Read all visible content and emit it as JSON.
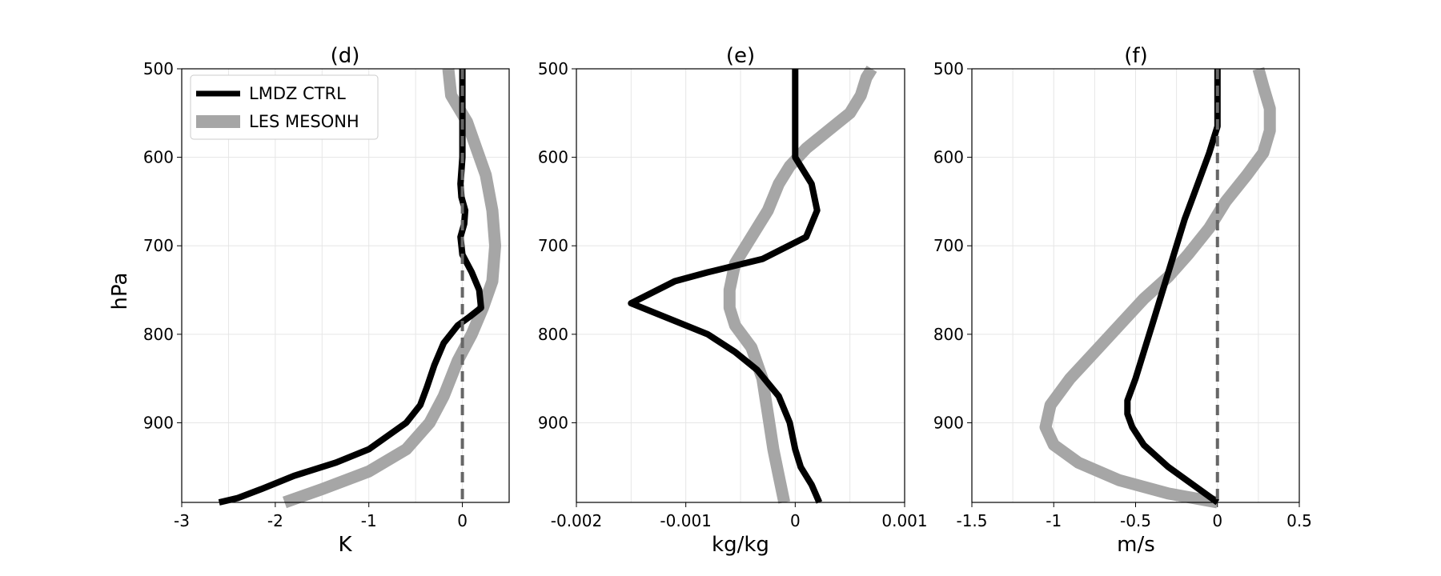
{
  "figure": {
    "ylabel": "hPa",
    "legend": {
      "placement": "top-left of panel (d)",
      "entries": [
        {
          "label": "LMDZ CTRL",
          "color": "#000000"
        },
        {
          "label": "LES MESONH",
          "color": "#a6a6a6"
        }
      ]
    }
  },
  "chart_data": [
    {
      "type": "line",
      "title": "(d)",
      "xlabel": "K",
      "ylabel": "hPa",
      "xlim": [
        -3,
        0.5
      ],
      "ylim": [
        990,
        500
      ],
      "y_inverted": true,
      "grid": true,
      "xticks": [
        -3,
        -2,
        -1,
        0
      ],
      "xtick_labels": [
        "-3",
        "-2",
        "-1",
        "0"
      ],
      "yticks": [
        500,
        600,
        700,
        800,
        900
      ],
      "ytick_labels": [
        "500",
        "600",
        "700",
        "800",
        "900"
      ],
      "zero_line": {
        "x": 0,
        "style": "dashed",
        "color": "#666666"
      },
      "series": [
        {
          "name": "LES MESONH",
          "color": "#a6a6a6",
          "points": [
            [
              -1.9,
              990
            ],
            [
              -1.5,
              975
            ],
            [
              -1.0,
              955
            ],
            [
              -0.6,
              930
            ],
            [
              -0.35,
              900
            ],
            [
              -0.2,
              870
            ],
            [
              -0.05,
              830
            ],
            [
              0.1,
              800
            ],
            [
              0.22,
              770
            ],
            [
              0.32,
              740
            ],
            [
              0.35,
              700
            ],
            [
              0.32,
              660
            ],
            [
              0.25,
              620
            ],
            [
              0.15,
              590
            ],
            [
              0.05,
              560
            ],
            [
              -0.12,
              530
            ],
            [
              -0.15,
              500
            ]
          ]
        },
        {
          "name": "LMDZ CTRL",
          "color": "#000000",
          "points": [
            [
              -2.6,
              990
            ],
            [
              -2.4,
              985
            ],
            [
              -2.15,
              975
            ],
            [
              -1.8,
              960
            ],
            [
              -1.35,
              945
            ],
            [
              -1.0,
              930
            ],
            [
              -0.8,
              915
            ],
            [
              -0.6,
              900
            ],
            [
              -0.45,
              880
            ],
            [
              -0.38,
              860
            ],
            [
              -0.3,
              835
            ],
            [
              -0.2,
              810
            ],
            [
              -0.05,
              790
            ],
            [
              0.08,
              780
            ],
            [
              0.2,
              770
            ],
            [
              0.18,
              750
            ],
            [
              0.1,
              730
            ],
            [
              0.05,
              720
            ],
            [
              0.0,
              710
            ],
            [
              -0.02,
              690
            ],
            [
              0.02,
              675
            ],
            [
              0.03,
              660
            ],
            [
              -0.01,
              645
            ],
            [
              -0.02,
              630
            ],
            [
              0.0,
              600
            ],
            [
              0.0,
              560
            ],
            [
              0.0,
              500
            ]
          ]
        }
      ]
    },
    {
      "type": "line",
      "title": "(e)",
      "xlabel": "kg/kg",
      "xlim": [
        -0.002,
        0.001
      ],
      "ylim": [
        990,
        500
      ],
      "y_inverted": true,
      "grid": true,
      "xticks": [
        -0.002,
        -0.001,
        0,
        0.001
      ],
      "xtick_labels": [
        "-0.002",
        "-0.001",
        "0",
        "0.001"
      ],
      "yticks": [
        500,
        600,
        700,
        800,
        900
      ],
      "ytick_labels": [
        "500",
        "600",
        "700",
        "800",
        "900"
      ],
      "series": [
        {
          "name": "LES MESONH",
          "color": "#a6a6a6",
          "points": [
            [
              -0.0001,
              990
            ],
            [
              -0.00015,
              960
            ],
            [
              -0.0002,
              930
            ],
            [
              -0.00025,
              890
            ],
            [
              -0.0003,
              850
            ],
            [
              -0.0004,
              815
            ],
            [
              -0.00055,
              790
            ],
            [
              -0.0006,
              770
            ],
            [
              -0.0006,
              750
            ],
            [
              -0.00055,
              720
            ],
            [
              -0.0004,
              690
            ],
            [
              -0.00025,
              660
            ],
            [
              -0.00015,
              630
            ],
            [
              -5e-05,
              610
            ],
            [
              0.0001,
              590
            ],
            [
              0.0003,
              570
            ],
            [
              0.0005,
              550
            ],
            [
              0.0006,
              530
            ],
            [
              0.00065,
              510
            ],
            [
              0.0007,
              500
            ]
          ]
        },
        {
          "name": "LMDZ CTRL",
          "color": "#000000",
          "points": [
            [
              0.00022,
              990
            ],
            [
              0.00015,
              970
            ],
            [
              5e-05,
              950
            ],
            [
              -0.0,
              930
            ],
            [
              -5e-05,
              900
            ],
            [
              -0.00015,
              870
            ],
            [
              -0.00035,
              840
            ],
            [
              -0.00055,
              820
            ],
            [
              -0.0008,
              800
            ],
            [
              -0.0011,
              785
            ],
            [
              -0.0015,
              765
            ],
            [
              -0.0011,
              740
            ],
            [
              -0.0008,
              730
            ],
            [
              -0.0003,
              715
            ],
            [
              0.0001,
              690
            ],
            [
              0.0002,
              660
            ],
            [
              0.00015,
              630
            ],
            [
              0.0,
              600
            ],
            [
              0.0,
              550
            ],
            [
              0.0,
              500
            ]
          ]
        }
      ]
    },
    {
      "type": "line",
      "title": "(f)",
      "xlabel": "m/s",
      "xlim": [
        -1.5,
        0.5
      ],
      "ylim": [
        990,
        500
      ],
      "y_inverted": true,
      "grid": true,
      "xticks": [
        -1.5,
        -1,
        -0.5,
        0,
        0.5
      ],
      "xtick_labels": [
        "-1.5",
        "-1",
        "-0.5",
        "0",
        "0.5"
      ],
      "yticks": [
        500,
        600,
        700,
        800,
        900
      ],
      "ytick_labels": [
        "500",
        "600",
        "700",
        "800",
        "900"
      ],
      "zero_line": {
        "x": 0,
        "style": "dashed",
        "color": "#666666"
      },
      "series": [
        {
          "name": "LES MESONH",
          "color": "#a6a6a6",
          "points": [
            [
              0.0,
              990
            ],
            [
              -0.3,
              980
            ],
            [
              -0.6,
              965
            ],
            [
              -0.85,
              945
            ],
            [
              -1.0,
              925
            ],
            [
              -1.05,
              905
            ],
            [
              -1.02,
              880
            ],
            [
              -0.9,
              850
            ],
            [
              -0.75,
              820
            ],
            [
              -0.6,
              790
            ],
            [
              -0.45,
              760
            ],
            [
              -0.3,
              735
            ],
            [
              -0.18,
              710
            ],
            [
              -0.05,
              680
            ],
            [
              0.05,
              650
            ],
            [
              0.18,
              620
            ],
            [
              0.28,
              595
            ],
            [
              0.32,
              570
            ],
            [
              0.32,
              545
            ],
            [
              0.28,
              520
            ],
            [
              0.25,
              500
            ]
          ]
        },
        {
          "name": "LMDZ CTRL",
          "color": "#000000",
          "points": [
            [
              0.0,
              990
            ],
            [
              -0.15,
              970
            ],
            [
              -0.3,
              950
            ],
            [
              -0.45,
              925
            ],
            [
              -0.52,
              905
            ],
            [
              -0.55,
              890
            ],
            [
              -0.55,
              875
            ],
            [
              -0.5,
              850
            ],
            [
              -0.45,
              820
            ],
            [
              -0.4,
              790
            ],
            [
              -0.35,
              760
            ],
            [
              -0.3,
              730
            ],
            [
              -0.25,
              700
            ],
            [
              -0.2,
              670
            ],
            [
              -0.15,
              645
            ],
            [
              -0.1,
              620
            ],
            [
              -0.05,
              595
            ],
            [
              0.0,
              565
            ],
            [
              0.0,
              540
            ],
            [
              0.0,
              500
            ]
          ]
        }
      ]
    }
  ]
}
